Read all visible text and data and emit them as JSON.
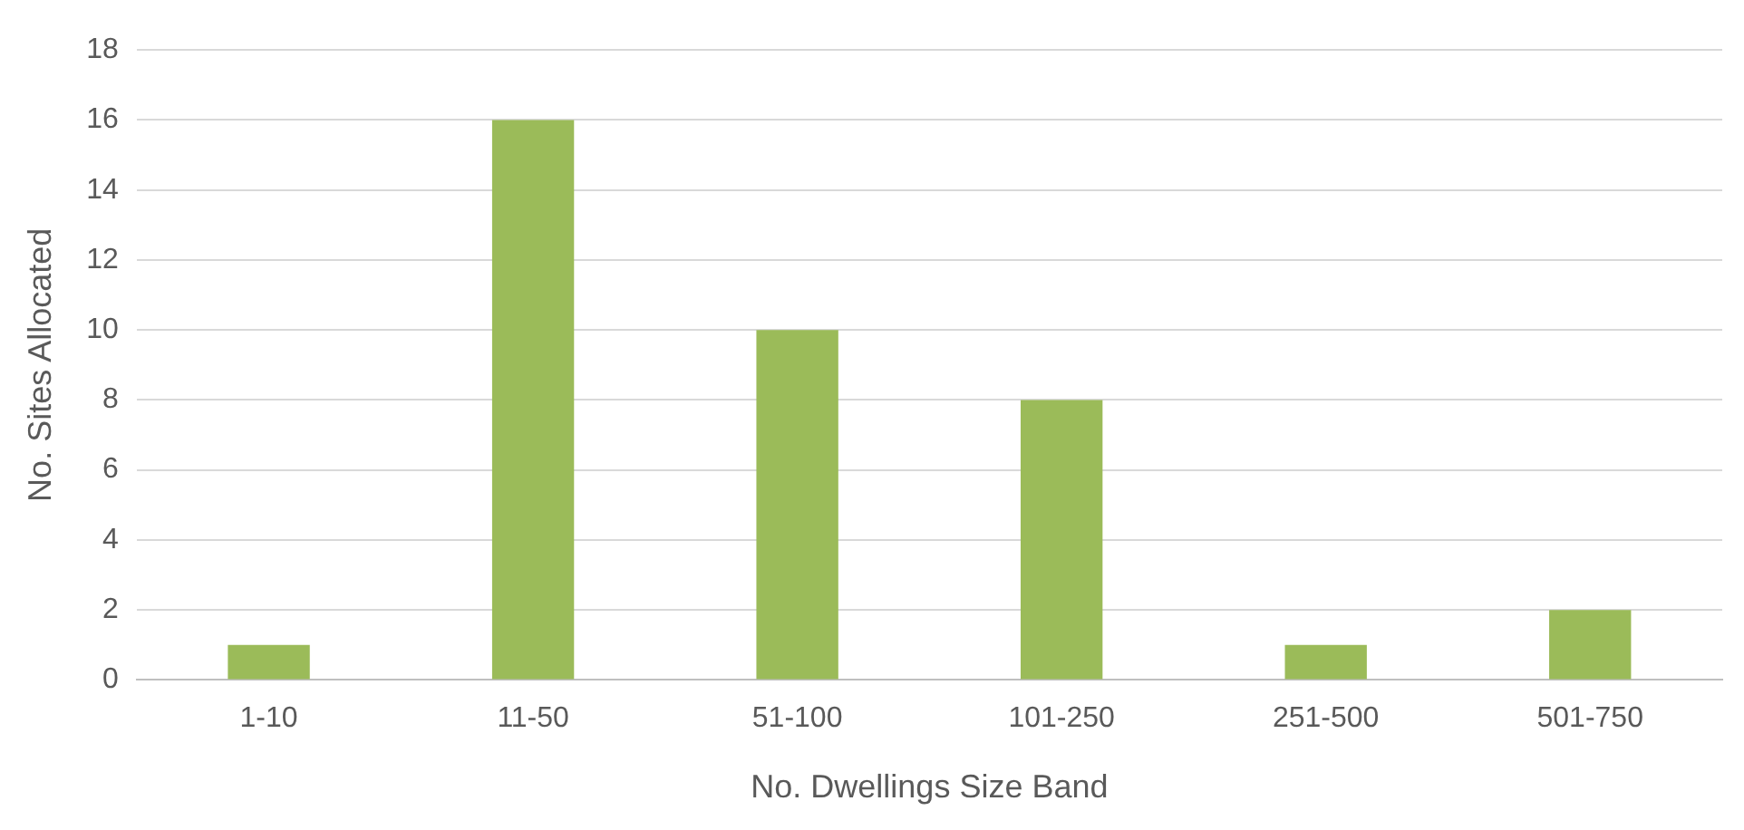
{
  "chart_data": {
    "type": "bar",
    "xlabel": "No. Dwellings Size Band",
    "ylabel": "No. Sites Allocated",
    "categories": [
      "1-10",
      "11-50",
      "51-100",
      "101-250",
      "251-500",
      "501-750"
    ],
    "values": [
      1,
      16,
      10,
      8,
      1,
      2
    ],
    "color": "#9bbb59",
    "ylim": [
      0,
      18
    ],
    "yticks": [
      0,
      2,
      4,
      6,
      8,
      10,
      12,
      14,
      16,
      18
    ],
    "grid": "y",
    "legend": false
  }
}
